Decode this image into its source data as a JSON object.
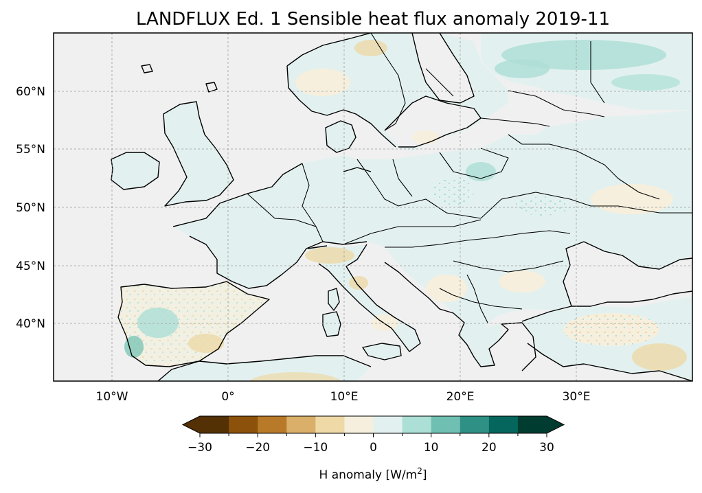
{
  "title": "LANDFLUX Ed. 1 Sensible heat flux anomaly 2019-11",
  "map": {
    "extent": {
      "lon": [
        -15,
        40
      ],
      "lat": [
        35,
        65
      ]
    },
    "ocean_color": "#f0f0f0",
    "gridlines": true,
    "lon_ticks": [
      {
        "value": -10,
        "label": "10°W"
      },
      {
        "value": 0,
        "label": "0°"
      },
      {
        "value": 10,
        "label": "10°E"
      },
      {
        "value": 20,
        "label": "20°E"
      },
      {
        "value": 30,
        "label": "30°E"
      }
    ],
    "lat_ticks": [
      {
        "value": 40,
        "label": "40°N"
      },
      {
        "value": 45,
        "label": "45°N"
      },
      {
        "value": 50,
        "label": "50°N"
      },
      {
        "value": 55,
        "label": "55°N"
      },
      {
        "value": 60,
        "label": "60°N"
      }
    ]
  },
  "colorbar": {
    "label_prefix": "H anomaly [W/m",
    "label_sup": "2",
    "label_suffix": "]",
    "extend": "both",
    "bounds": [
      -30,
      -25,
      -20,
      -15,
      -10,
      -5,
      0,
      5,
      10,
      15,
      20,
      25,
      30
    ],
    "tick_values": [
      -30,
      -20,
      -10,
      0,
      10,
      20,
      30
    ],
    "tick_labels": [
      "−30",
      "−20",
      "−10",
      "0",
      "10",
      "20",
      "30"
    ],
    "colors": [
      "#543005",
      "#8c510a",
      "#b87a28",
      "#d9af6a",
      "#eed9a7",
      "#f6efdd",
      "#e2f1ef",
      "#acdfd6",
      "#6fc0b2",
      "#2f9185",
      "#05665d",
      "#003c30"
    ]
  }
}
